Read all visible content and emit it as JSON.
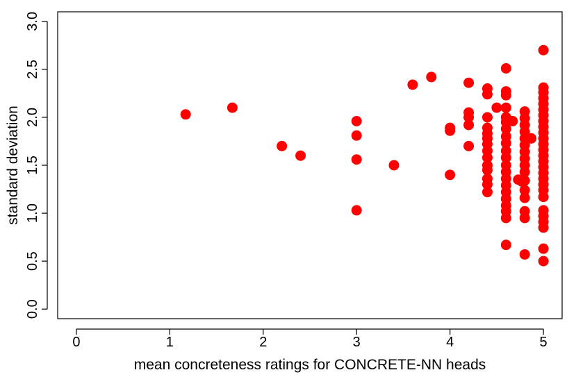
{
  "chart_data": {
    "type": "scatter",
    "title": "",
    "xlabel": "mean concreteness ratings for CONCRETE-NN heads",
    "ylabel": "standard deviation",
    "xlim": [
      -0.2,
      5.2
    ],
    "ylim": [
      -0.1,
      3.1
    ],
    "xticks": [
      0,
      1,
      2,
      3,
      4,
      5
    ],
    "xtick_labels": [
      "0",
      "1",
      "2",
      "3",
      "4",
      "5"
    ],
    "yticks": [
      0.0,
      0.5,
      1.0,
      1.5,
      2.0,
      2.5,
      3.0
    ],
    "ytick_labels": [
      "0.0",
      "0.5",
      "1.0",
      "1.5",
      "2.0",
      "2.5",
      "3.0"
    ],
    "grid": false,
    "marker_color": "#ff0000",
    "points": [
      [
        1.17,
        2.03
      ],
      [
        1.67,
        2.1
      ],
      [
        2.2,
        1.7
      ],
      [
        2.4,
        1.6
      ],
      [
        3.0,
        1.96
      ],
      [
        3.0,
        1.81
      ],
      [
        3.0,
        1.56
      ],
      [
        3.0,
        1.03
      ],
      [
        3.4,
        1.5
      ],
      [
        3.6,
        2.34
      ],
      [
        3.8,
        2.42
      ],
      [
        4.0,
        1.89
      ],
      [
        4.0,
        1.86
      ],
      [
        4.0,
        1.4
      ],
      [
        4.2,
        2.36
      ],
      [
        4.2,
        2.05
      ],
      [
        4.2,
        2.0
      ],
      [
        4.2,
        1.92
      ],
      [
        4.2,
        1.7
      ],
      [
        4.4,
        2.3
      ],
      [
        4.4,
        2.24
      ],
      [
        4.4,
        2.0
      ],
      [
        4.4,
        1.89
      ],
      [
        4.4,
        1.83
      ],
      [
        4.4,
        1.78
      ],
      [
        4.4,
        1.72
      ],
      [
        4.4,
        1.65
      ],
      [
        4.4,
        1.58
      ],
      [
        4.4,
        1.5
      ],
      [
        4.4,
        1.45
      ],
      [
        4.4,
        1.36
      ],
      [
        4.4,
        1.3
      ],
      [
        4.4,
        1.22
      ],
      [
        4.5,
        2.1
      ],
      [
        4.6,
        2.51
      ],
      [
        4.6,
        2.27
      ],
      [
        4.6,
        2.23
      ],
      [
        4.6,
        2.1
      ],
      [
        4.6,
        2.0
      ],
      [
        4.6,
        1.95
      ],
      [
        4.6,
        1.88
      ],
      [
        4.6,
        1.8
      ],
      [
        4.6,
        1.73
      ],
      [
        4.6,
        1.65
      ],
      [
        4.6,
        1.58
      ],
      [
        4.6,
        1.5
      ],
      [
        4.6,
        1.43
      ],
      [
        4.6,
        1.36
      ],
      [
        4.6,
        1.29
      ],
      [
        4.6,
        1.22
      ],
      [
        4.6,
        1.15
      ],
      [
        4.6,
        1.08
      ],
      [
        4.6,
        1.02
      ],
      [
        4.6,
        0.95
      ],
      [
        4.6,
        0.67
      ],
      [
        4.67,
        1.96
      ],
      [
        4.73,
        1.35
      ],
      [
        4.77,
        1.33
      ],
      [
        4.8,
        2.06
      ],
      [
        4.8,
        1.99
      ],
      [
        4.8,
        1.92
      ],
      [
        4.8,
        1.85
      ],
      [
        4.8,
        1.78
      ],
      [
        4.8,
        1.71
      ],
      [
        4.8,
        1.64
      ],
      [
        4.8,
        1.57
      ],
      [
        4.8,
        1.5
      ],
      [
        4.8,
        1.43
      ],
      [
        4.8,
        1.34
      ],
      [
        4.8,
        1.24
      ],
      [
        4.8,
        1.16
      ],
      [
        4.8,
        1.02
      ],
      [
        4.8,
        0.95
      ],
      [
        4.8,
        0.57
      ],
      [
        4.87,
        1.78
      ],
      [
        5.0,
        2.7
      ],
      [
        5.0,
        2.31
      ],
      [
        5.0,
        2.26
      ],
      [
        5.0,
        2.2
      ],
      [
        5.0,
        2.14
      ],
      [
        5.0,
        2.08
      ],
      [
        5.0,
        2.02
      ],
      [
        5.0,
        1.96
      ],
      [
        5.0,
        1.9
      ],
      [
        5.0,
        1.84
      ],
      [
        5.0,
        1.78
      ],
      [
        5.0,
        1.72
      ],
      [
        5.0,
        1.66
      ],
      [
        5.0,
        1.6
      ],
      [
        5.0,
        1.54
      ],
      [
        5.0,
        1.48
      ],
      [
        5.0,
        1.42
      ],
      [
        5.0,
        1.36
      ],
      [
        5.0,
        1.3
      ],
      [
        5.0,
        1.24
      ],
      [
        5.0,
        1.17
      ],
      [
        5.0,
        1.03
      ],
      [
        5.0,
        0.97
      ],
      [
        5.0,
        0.91
      ],
      [
        5.0,
        0.85
      ],
      [
        5.0,
        0.63
      ],
      [
        5.0,
        0.5
      ]
    ]
  }
}
